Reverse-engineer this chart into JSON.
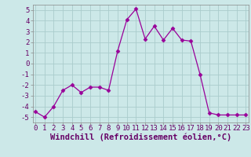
{
  "x": [
    0,
    1,
    2,
    3,
    4,
    5,
    6,
    7,
    8,
    9,
    10,
    11,
    12,
    13,
    14,
    15,
    16,
    17,
    18,
    19,
    20,
    21,
    22,
    23
  ],
  "y": [
    -4.5,
    -5.0,
    -4.0,
    -2.5,
    -2.0,
    -2.7,
    -2.2,
    -2.2,
    -2.5,
    1.2,
    4.1,
    5.1,
    2.3,
    3.5,
    2.2,
    3.3,
    2.2,
    2.1,
    -1.0,
    -4.6,
    -4.8,
    -4.8,
    -4.8,
    -4.8
  ],
  "line_color": "#990099",
  "marker": "D",
  "marker_size": 2.5,
  "bg_color": "#cce8e8",
  "grid_color": "#aacccc",
  "xlabel": "Windchill (Refroidissement éolien,°C)",
  "xlabel_color": "#660066",
  "xlabel_fontsize": 7.5,
  "ylabel_ticks": [
    -5,
    -4,
    -3,
    -2,
    -1,
    0,
    1,
    2,
    3,
    4,
    5
  ],
  "ytick_labels": [
    "-5",
    "-4",
    "-3",
    "-2",
    "-1",
    "0",
    "1",
    "2",
    "3",
    "4",
    "5"
  ],
  "xticks": [
    0,
    1,
    2,
    3,
    4,
    5,
    6,
    7,
    8,
    9,
    10,
    11,
    12,
    13,
    14,
    15,
    16,
    17,
    18,
    19,
    20,
    21,
    22,
    23
  ],
  "xtick_labels": [
    "0",
    "1",
    "2",
    "3",
    "4",
    "5",
    "6",
    "7",
    "8",
    "9",
    "10",
    "11",
    "12",
    "13",
    "14",
    "15",
    "16",
    "17",
    "18",
    "19",
    "20",
    "21",
    "22",
    "23"
  ],
  "xlim": [
    -0.3,
    23.3
  ],
  "ylim": [
    -5.5,
    5.5
  ],
  "tick_fontsize": 6.5,
  "tick_color": "#660066"
}
